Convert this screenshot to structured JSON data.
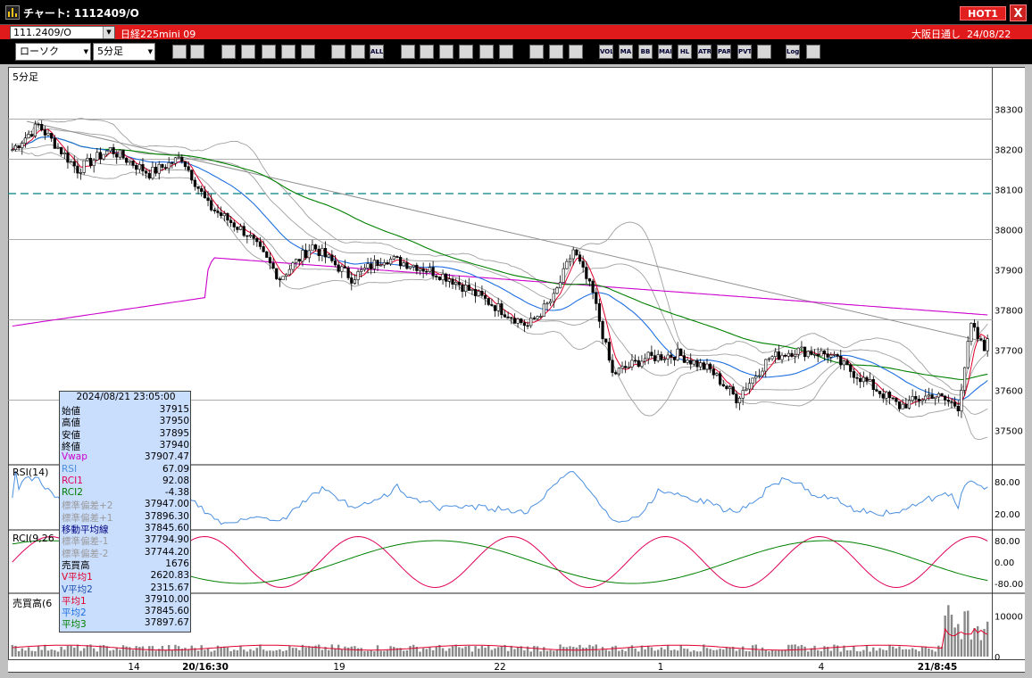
{
  "window": {
    "title": "チャート: 1112409/O",
    "hot_label": "HOT1",
    "close_label": "X"
  },
  "infobar": {
    "symbol_code": "111.2409/O",
    "instrument_name": "日経225mini 09",
    "session": "大阪日通し",
    "date": "24/08/22"
  },
  "toolbar": {
    "chart_type": "ローソク",
    "interval": "5分足",
    "buttons": [
      "zoom-icon",
      "crosshair-icon",
      "draw-icon",
      "search-icon",
      "grid-icon",
      "compare-icon",
      "blank-icon",
      "candle-icon",
      "spread-icon",
      "ALL",
      "pen-icon",
      "arrow-icon",
      "cursor-icon",
      "shape-icon",
      "list-icon",
      "trash-icon",
      "settings-icon",
      "wrench-icon",
      "palette-icon",
      "VOL",
      "MA",
      "BB",
      "MAE",
      "HL",
      "ATR",
      "PAR",
      "PVT",
      "box-icon",
      "Log",
      "export-icon"
    ]
  },
  "chart": {
    "panel_label": "5分足",
    "price_ticks": [
      "38300",
      "38200",
      "38100",
      "38000",
      "37900",
      "37800",
      "37700",
      "37600",
      "37500"
    ],
    "rsi_label": "RSI(14)",
    "rsi_ticks": [
      "80.00",
      "20.00"
    ],
    "rci_label": "RCI(9,26",
    "rci_ticks": [
      "80.00",
      "0.00",
      "-80.00"
    ],
    "vol_label": "売買高(6",
    "vol_ticks": [
      "10000",
      "0"
    ],
    "x_ticks": [
      {
        "label": "14",
        "bold": false
      },
      {
        "label": "20/16:30",
        "bold": true
      },
      {
        "label": "19",
        "bold": false
      },
      {
        "label": "22",
        "bold": false
      },
      {
        "label": "1",
        "bold": false
      },
      {
        "label": "4",
        "bold": false
      },
      {
        "label": "21/8:45",
        "bold": true
      }
    ],
    "colors": {
      "candle": "#000000",
      "ma1": "#e0002a",
      "ma2": "#1e6fe0",
      "ma3": "#008000",
      "vwap": "#cc00cc",
      "bands": "#a0a0a0",
      "trendline": "#909090",
      "dashed_level": "#008080"
    },
    "price_range": [
      37450,
      38350
    ],
    "dashed_level": 38090
  },
  "data_panel": {
    "timestamp": "2024/08/21 23:05:00",
    "rows": [
      {
        "label": "始値",
        "value": "37915",
        "color": "#000000"
      },
      {
        "label": "高値",
        "value": "37950",
        "color": "#000000"
      },
      {
        "label": "安値",
        "value": "37895",
        "color": "#000000"
      },
      {
        "label": "終値",
        "value": "37940",
        "color": "#000000"
      },
      {
        "label": "Vwap",
        "value": "37907.47",
        "color": "#cc00cc"
      },
      {
        "label": "RSI",
        "value": "67.09",
        "color": "#4a8fe0"
      },
      {
        "label": "RCI1",
        "value": "92.08",
        "color": "#e0005a"
      },
      {
        "label": "RCI2",
        "value": "-4.38",
        "color": "#008000"
      },
      {
        "label": "標準偏差+2",
        "value": "37947.00",
        "color": "#9a9a9a"
      },
      {
        "label": "標準偏差+1",
        "value": "37896.30",
        "color": "#9a9a9a"
      },
      {
        "label": "移動平均線",
        "value": "37845.60",
        "color": "#000080"
      },
      {
        "label": "標準偏差-1",
        "value": "37794.90",
        "color": "#9a9a9a"
      },
      {
        "label": "標準偏差-2",
        "value": "37744.20",
        "color": "#9a9a9a"
      },
      {
        "label": "売買高",
        "value": "1676",
        "color": "#000000"
      },
      {
        "label": "V平均1",
        "value": "2620.83",
        "color": "#e0002a"
      },
      {
        "label": "V平均2",
        "value": "2315.67",
        "color": "#1e4fb0"
      },
      {
        "label": "平均1",
        "value": "37910.00",
        "color": "#e0002a"
      },
      {
        "label": "平均2",
        "value": "37845.60",
        "color": "#1e6fe0"
      },
      {
        "label": "平均3",
        "value": "37897.67",
        "color": "#008000"
      }
    ]
  }
}
